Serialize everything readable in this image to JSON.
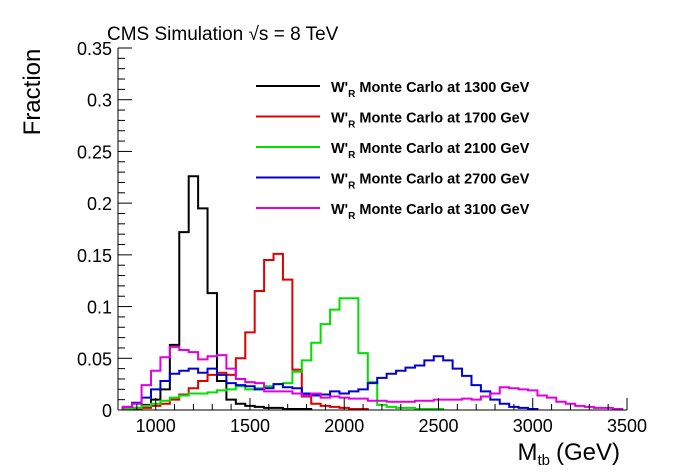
{
  "chart_data": {
    "type": "histogram",
    "title": "CMS Simulation √s = 8 TeV",
    "xlabel": "M",
    "xlabel_sub": "tb",
    "xlabel_unit": "(GeV)",
    "ylabel": "Fraction",
    "xlim": [
      800,
      3500
    ],
    "ylim": [
      0,
      0.35
    ],
    "bin_width": 50,
    "x_ticks": [
      1000,
      1500,
      2000,
      2500,
      3000,
      3500
    ],
    "x_tick_labels": [
      "1000",
      "1500",
      "2000",
      "2500",
      "3000",
      "3500"
    ],
    "y_ticks": [
      0,
      0.05,
      0.1,
      0.15,
      0.2,
      0.25,
      0.3,
      0.35
    ],
    "y_tick_labels": [
      "0",
      "0.05",
      "0.1",
      "0.15",
      "0.2",
      "0.25",
      "0.3",
      "0.35"
    ],
    "grid": false,
    "legend_position": "top-right",
    "legend_title_prefix": "W'",
    "legend_title_sub": "R",
    "series": [
      {
        "name": "Monte Carlo at 1300 GeV",
        "color": "#000000",
        "x": [
          850,
          900,
          950,
          1000,
          1050,
          1100,
          1150,
          1200,
          1250,
          1300,
          1350,
          1400,
          1450,
          1500,
          1550,
          1600,
          1650,
          1700,
          1750,
          1800
        ],
        "values": [
          0.001,
          0.002,
          0.005,
          0.01,
          0.02,
          0.063,
          0.172,
          0.226,
          0.195,
          0.113,
          0.028,
          0.01,
          0.006,
          0.004,
          0.003,
          0.002,
          0.002,
          0.001,
          0.001,
          0.001
        ]
      },
      {
        "name": "Monte Carlo at 1700 GeV",
        "color": "#e00000",
        "x": [
          850,
          900,
          950,
          1000,
          1050,
          1100,
          1150,
          1200,
          1250,
          1300,
          1350,
          1400,
          1450,
          1500,
          1550,
          1600,
          1650,
          1700,
          1750,
          1800,
          1850,
          1900,
          1950,
          2000,
          2050,
          2100
        ],
        "values": [
          0.001,
          0.001,
          0.002,
          0.004,
          0.006,
          0.01,
          0.015,
          0.021,
          0.028,
          0.034,
          0.036,
          0.034,
          0.05,
          0.075,
          0.115,
          0.145,
          0.151,
          0.126,
          0.039,
          0.013,
          0.006,
          0.004,
          0.003,
          0.002,
          0.001,
          0.001
        ]
      },
      {
        "name": "Monte Carlo at 2100 GeV",
        "color": "#00e000",
        "x": [
          850,
          900,
          950,
          1000,
          1050,
          1100,
          1150,
          1200,
          1250,
          1300,
          1350,
          1400,
          1450,
          1500,
          1550,
          1600,
          1650,
          1700,
          1750,
          1800,
          1850,
          1900,
          1950,
          2000,
          2050,
          2100,
          2150,
          2200,
          2250,
          2300,
          2350,
          2400,
          2450,
          2500
        ],
        "values": [
          0.001,
          0.002,
          0.004,
          0.006,
          0.009,
          0.012,
          0.014,
          0.016,
          0.016,
          0.017,
          0.019,
          0.02,
          0.023,
          0.02,
          0.021,
          0.023,
          0.025,
          0.026,
          0.037,
          0.048,
          0.065,
          0.083,
          0.097,
          0.108,
          0.108,
          0.055,
          0.027,
          0.005,
          0.003,
          0.002,
          0.002,
          0.001,
          0.001,
          0.001
        ]
      },
      {
        "name": "Monte Carlo at 2700 GeV",
        "color": "#0000d0",
        "x": [
          850,
          900,
          950,
          1000,
          1050,
          1100,
          1150,
          1200,
          1250,
          1300,
          1350,
          1400,
          1450,
          1500,
          1550,
          1600,
          1650,
          1700,
          1750,
          1800,
          1850,
          1900,
          1950,
          2000,
          2050,
          2100,
          2150,
          2200,
          2250,
          2300,
          2350,
          2400,
          2450,
          2500,
          2550,
          2600,
          2650,
          2700,
          2750,
          2800,
          2850,
          2900,
          2950,
          3000
        ],
        "values": [
          0.003,
          0.007,
          0.012,
          0.02,
          0.028,
          0.035,
          0.038,
          0.04,
          0.036,
          0.04,
          0.034,
          0.026,
          0.024,
          0.023,
          0.02,
          0.021,
          0.025,
          0.022,
          0.021,
          0.016,
          0.014,
          0.015,
          0.018,
          0.016,
          0.018,
          0.02,
          0.026,
          0.031,
          0.035,
          0.038,
          0.041,
          0.043,
          0.048,
          0.052,
          0.048,
          0.04,
          0.033,
          0.024,
          0.018,
          0.01,
          0.006,
          0.003,
          0.002,
          0.001
        ]
      },
      {
        "name": "Monte Carlo at 3100 GeV",
        "color": "#e000e0",
        "x": [
          850,
          900,
          950,
          1000,
          1050,
          1100,
          1150,
          1200,
          1250,
          1300,
          1350,
          1400,
          1450,
          1500,
          1550,
          1600,
          1650,
          1700,
          1750,
          1800,
          1850,
          1900,
          1950,
          2000,
          2050,
          2100,
          2150,
          2200,
          2250,
          2300,
          2350,
          2400,
          2450,
          2500,
          2550,
          2600,
          2650,
          2700,
          2750,
          2800,
          2850,
          2900,
          2950,
          3000,
          3050,
          3100,
          3150,
          3200,
          3250,
          3300,
          3350,
          3400,
          3450
        ],
        "values": [
          0.003,
          0.006,
          0.024,
          0.038,
          0.051,
          0.061,
          0.058,
          0.056,
          0.049,
          0.052,
          0.053,
          0.04,
          0.03,
          0.027,
          0.026,
          0.018,
          0.018,
          0.018,
          0.016,
          0.014,
          0.016,
          0.012,
          0.013,
          0.012,
          0.011,
          0.011,
          0.009,
          0.009,
          0.008,
          0.008,
          0.008,
          0.009,
          0.009,
          0.01,
          0.01,
          0.01,
          0.011,
          0.01,
          0.013,
          0.016,
          0.022,
          0.021,
          0.02,
          0.019,
          0.014,
          0.012,
          0.008,
          0.006,
          0.004,
          0.003,
          0.002,
          0.002,
          0.001
        ]
      }
    ]
  }
}
